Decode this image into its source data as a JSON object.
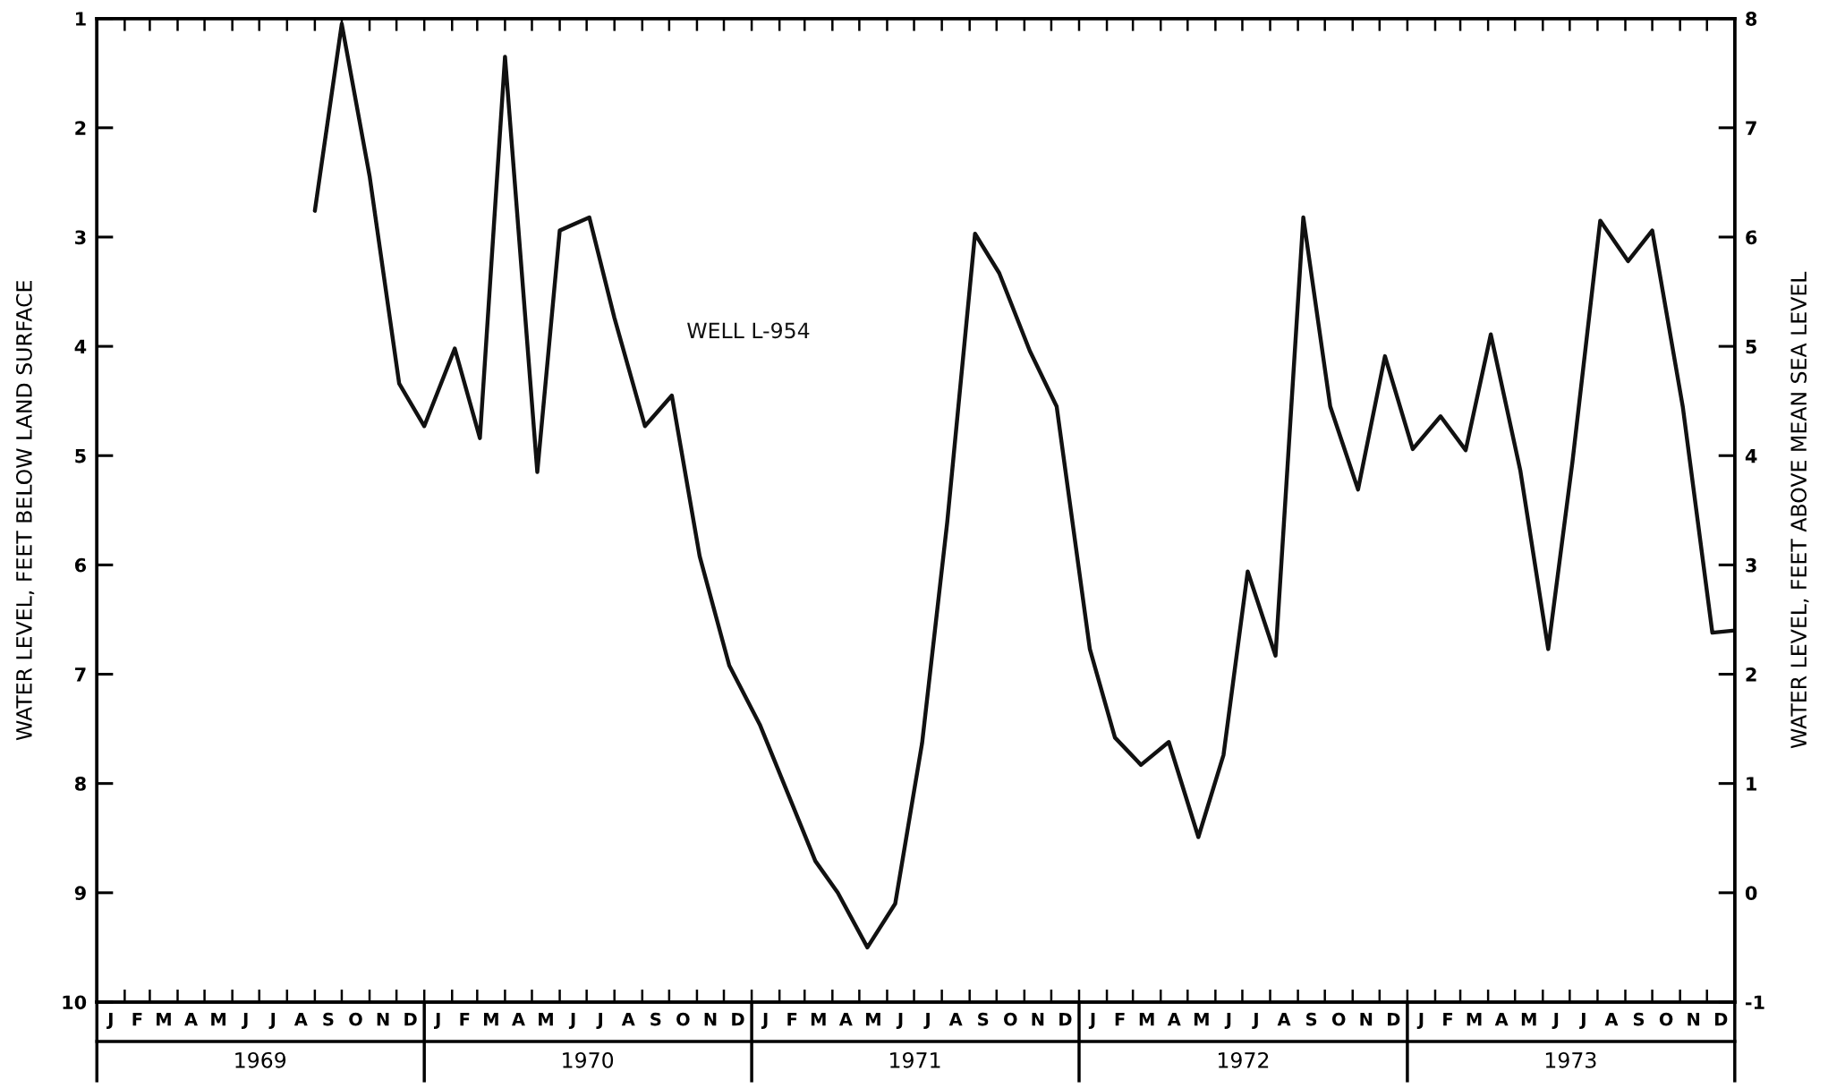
{
  "chart_data": {
    "type": "line",
    "ylabel": "WATER LEVEL, FEET BELOW LAND SURFACE",
    "y2label": "WATER LEVEL, FEET ABOVE MEAN SEA LEVEL",
    "series": [
      {
        "name": "WELL L-954",
        "color": "#111111",
        "x": [
          "1969-09-01",
          "1969-10-01",
          "1969-11-01",
          "1969-12-04",
          "1970-01-01",
          "1970-02-04",
          "1970-03-04",
          "1970-04-01",
          "1970-05-07",
          "1970-06-01",
          "1970-07-04",
          "1970-08-01",
          "1970-09-04",
          "1970-10-04",
          "1970-11-04",
          "1970-12-07",
          "1971-01-10",
          "1971-03-13",
          "1971-04-07",
          "1971-05-10",
          "1971-06-10",
          "1971-07-10",
          "1971-08-07",
          "1971-09-07",
          "1971-10-04",
          "1971-11-07",
          "1971-12-07",
          "1972-01-13",
          "1972-02-10",
          "1972-03-10",
          "1972-04-10",
          "1972-05-13",
          "1972-06-10",
          "1972-07-07",
          "1972-08-07",
          "1972-09-07",
          "1972-10-07",
          "1972-11-07",
          "1972-12-07",
          "1973-01-07",
          "1973-02-07",
          "1973-03-07",
          "1973-04-04",
          "1973-05-07",
          "1973-06-07",
          "1973-07-04",
          "1973-08-04",
          "1973-09-04",
          "1973-10-01",
          "1973-11-04",
          "1973-12-07",
          "1974-01-01"
        ],
        "values": [
          2.76,
          1.05,
          2.44,
          4.34,
          4.73,
          4.02,
          4.84,
          1.35,
          5.15,
          2.94,
          2.82,
          3.74,
          4.73,
          4.45,
          5.92,
          6.92,
          7.46,
          8.71,
          9.0,
          9.5,
          9.1,
          7.63,
          5.61,
          2.97,
          3.33,
          4.04,
          4.55,
          6.77,
          7.58,
          7.83,
          7.62,
          8.49,
          7.74,
          6.06,
          6.83,
          2.82,
          4.55,
          5.31,
          4.09,
          4.94,
          4.64,
          4.95,
          3.89,
          5.14,
          6.77,
          5.06,
          2.85,
          3.22,
          2.94,
          4.55,
          6.62,
          6.6
        ]
      }
    ],
    "xlim": [
      "1969-01-01",
      "1974-01-01"
    ],
    "annotations": [
      "J",
      "F",
      "M",
      "A",
      "M",
      "J",
      "J",
      "A",
      "S",
      "O",
      "N",
      "D",
      "J",
      "F",
      "M",
      "A",
      "M",
      "J",
      "J",
      "A",
      "S",
      "O",
      "N",
      "D",
      "J",
      "F",
      "M",
      "A",
      "M",
      "J",
      "J",
      "A",
      "S",
      "O",
      "N",
      "D",
      "J",
      "F",
      "M",
      "A",
      "M",
      "J",
      "J",
      "A",
      "S",
      "O",
      "N",
      "D",
      "J",
      "F",
      "M",
      "A",
      "M",
      "J",
      "J",
      "A",
      "S",
      "O",
      "N",
      "D"
    ],
    "xticks": [
      {
        "value": "1969-07-02",
        "label": "1969"
      },
      {
        "value": "1970-07-02",
        "label": "1970"
      },
      {
        "value": "1971-07-02",
        "label": "1971"
      },
      {
        "value": "1972-07-02",
        "label": "1972"
      },
      {
        "value": "1973-07-02",
        "label": "1973"
      }
    ],
    "ylim": [
      10,
      1
    ],
    "yticks": [
      1,
      2,
      3,
      4,
      5,
      6,
      7,
      8,
      9,
      10
    ],
    "y2lim": [
      -1,
      8
    ],
    "y2ticks": [
      -1,
      0,
      1,
      2,
      3,
      4,
      5,
      6,
      7,
      8
    ],
    "grid": false,
    "legend": false,
    "marker": "none",
    "line_style": "solid"
  }
}
